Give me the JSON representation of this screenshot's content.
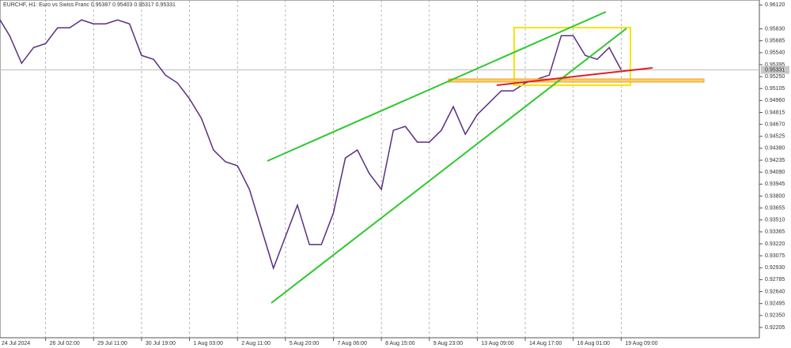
{
  "chart_data": {
    "type": "line",
    "title": "EURCHF, H1:  Euro vs Swiss Franc  0.95387 0.95403 0.95317 0.95331",
    "categories": [
      "24 Jul 2024",
      null,
      null,
      null,
      "26 Jul 02:00",
      null,
      null,
      null,
      "29 Jul 11:00",
      null,
      null,
      null,
      "30 Jul 19:00",
      null,
      null,
      null,
      "1 Aug 03:00",
      null,
      null,
      null,
      "2 Aug 11:00",
      null,
      null,
      null,
      "5 Aug 20:00",
      null,
      null,
      null,
      "7 Aug 06:00",
      null,
      null,
      null,
      "8 Aug 15:00",
      null,
      null,
      null,
      "9 Aug 23:00",
      null,
      null,
      null,
      "13 Aug 09:00",
      null,
      null,
      null,
      "14 Aug 17:00",
      null,
      null,
      null,
      "16 Aug 01:00",
      null,
      null,
      null,
      "19 Aug 09:00"
    ],
    "values": [
      0.95986,
      0.95747,
      0.95412,
      0.95603,
      0.95651,
      0.95842,
      0.95842,
      0.95938,
      0.9589,
      0.9589,
      0.95938,
      0.9589,
      0.95507,
      0.9546,
      0.95268,
      0.95173,
      0.94981,
      0.94742,
      0.94359,
      0.94216,
      0.94168,
      0.93881,
      0.93402,
      0.92924,
      0.93307,
      0.9369,
      0.93211,
      0.93211,
      0.93594,
      0.94263,
      0.94359,
      0.94072,
      0.93881,
      0.94598,
      0.94646,
      0.94455,
      0.94455,
      0.94598,
      0.94885,
      0.9455,
      0.9479,
      0.94933,
      0.95077,
      0.95077,
      0.95173,
      0.9522,
      0.95268,
      0.95747,
      0.95747,
      0.95507,
      0.9546,
      0.95603,
      0.95331
    ],
    "color": "#5a2d82",
    "last_price": 0.95331,
    "ylim": [
      0.9208,
      0.9618
    ],
    "yticks": [
      {
        "value": 0.9612,
        "label": "0.96120"
      },
      {
        "value": 0.9583,
        "label": "0.95830"
      },
      0.95685,
      {
        "value": 0.9554,
        "label": "0.95540"
      },
      0.95395,
      {
        "value": 0.9525,
        "label": "0.95250"
      },
      0.95105,
      {
        "value": 0.9496,
        "label": "0.94960"
      },
      0.94815,
      {
        "value": 0.9467,
        "label": "0.94670"
      },
      0.94525,
      {
        "value": 0.9438,
        "label": "0.94380"
      },
      0.94235,
      {
        "value": 0.9409,
        "label": "0.94090"
      },
      0.93945,
      {
        "value": 0.938,
        "label": "0.93800"
      },
      0.93655,
      {
        "value": 0.9351,
        "label": "0.93510"
      },
      0.93365,
      {
        "value": 0.9322,
        "label": "0.93220"
      },
      0.93075,
      {
        "value": 0.9293,
        "label": "0.92930"
      },
      0.92785,
      {
        "value": 0.9264,
        "label": "0.92640"
      },
      0.92495,
      {
        "value": 0.9235,
        "label": "0.92350"
      },
      0.92205
    ],
    "grid": true
  }
}
